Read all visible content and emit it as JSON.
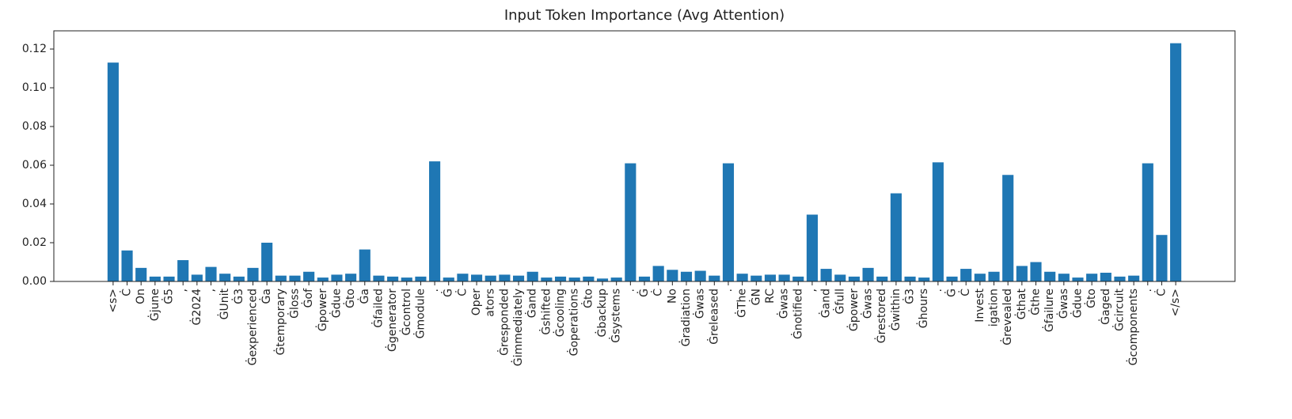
{
  "chart_data": {
    "type": "bar",
    "title": "Input Token Importance (Avg Attention)",
    "categories": [
      "<s>",
      "Ċ",
      "On",
      "Ġjune",
      "Ġ5",
      ",",
      "Ġ2024",
      ",",
      "ĠUnit",
      "Ġ3",
      "Ġexperienced",
      "Ġa",
      "Ġtemporary",
      "Ġloss",
      "Ġof",
      "Ġpower",
      "Ġdue",
      "Ġto",
      "Ġa",
      "Ġfailed",
      "Ġgenerator",
      "Ġcontrol",
      "Ġmodule",
      ".",
      "Ġ",
      "Ċ",
      "Oper",
      "ators",
      "Ġresponded",
      "Ġimmediately",
      "Ġand",
      "Ġshifted",
      "Ġcooling",
      "Ġoperations",
      "Ġto",
      "Ġbackup",
      "Ġsystems",
      ".",
      "Ġ",
      "Ċ",
      "No",
      "Ġradiation",
      "Ġwas",
      "Ġreleased",
      ".",
      "ĠThe",
      "ĠN",
      "RC",
      "Ġwas",
      "Ġnotified",
      ",",
      "Ġand",
      "Ġfull",
      "Ġpower",
      "Ġwas",
      "Ġrestored",
      "Ġwithin",
      "Ġ3",
      "Ġhours",
      ".",
      "Ġ",
      "Ċ",
      "Invest",
      "igation",
      "Ġrevealed",
      "Ġthat",
      "Ġthe",
      "Ġfailure",
      "Ġwas",
      "Ġdue",
      "Ġto",
      "Ġaged",
      "Ġcircuit",
      "Ġcomponents",
      ".",
      "Ċ",
      "</s>"
    ],
    "values": [
      0.113,
      0.016,
      0.007,
      0.0025,
      0.0025,
      0.011,
      0.0035,
      0.0075,
      0.004,
      0.0025,
      0.007,
      0.02,
      0.003,
      0.003,
      0.005,
      0.002,
      0.0035,
      0.004,
      0.0165,
      0.003,
      0.0025,
      0.002,
      0.0025,
      0.062,
      0.002,
      0.004,
      0.0035,
      0.003,
      0.0035,
      0.003,
      0.005,
      0.002,
      0.0025,
      0.002,
      0.0025,
      0.0015,
      0.002,
      0.061,
      0.0025,
      0.008,
      0.006,
      0.005,
      0.0055,
      0.003,
      0.061,
      0.004,
      0.003,
      0.0035,
      0.0035,
      0.0025,
      0.0345,
      0.0065,
      0.0035,
      0.0025,
      0.007,
      0.0025,
      0.0455,
      0.0025,
      0.002,
      0.0615,
      0.0025,
      0.0065,
      0.004,
      0.005,
      0.055,
      0.008,
      0.01,
      0.005,
      0.004,
      0.002,
      0.004,
      0.0045,
      0.0025,
      0.003,
      0.061,
      0.024,
      0.123
    ],
    "color": "#1f77b4",
    "ylim": [
      0,
      0.1294
    ],
    "yticks": [
      {
        "value": 0,
        "label": "0.00"
      },
      {
        "value": 0.02,
        "label": "0.02"
      },
      {
        "value": 0.04,
        "label": "0.04"
      },
      {
        "value": 0.06,
        "label": "0.06"
      },
      {
        "value": 0.08,
        "label": "0.08"
      },
      {
        "value": 0.1,
        "label": "0.10"
      },
      {
        "value": 0.12,
        "label": "0.12"
      }
    ]
  }
}
